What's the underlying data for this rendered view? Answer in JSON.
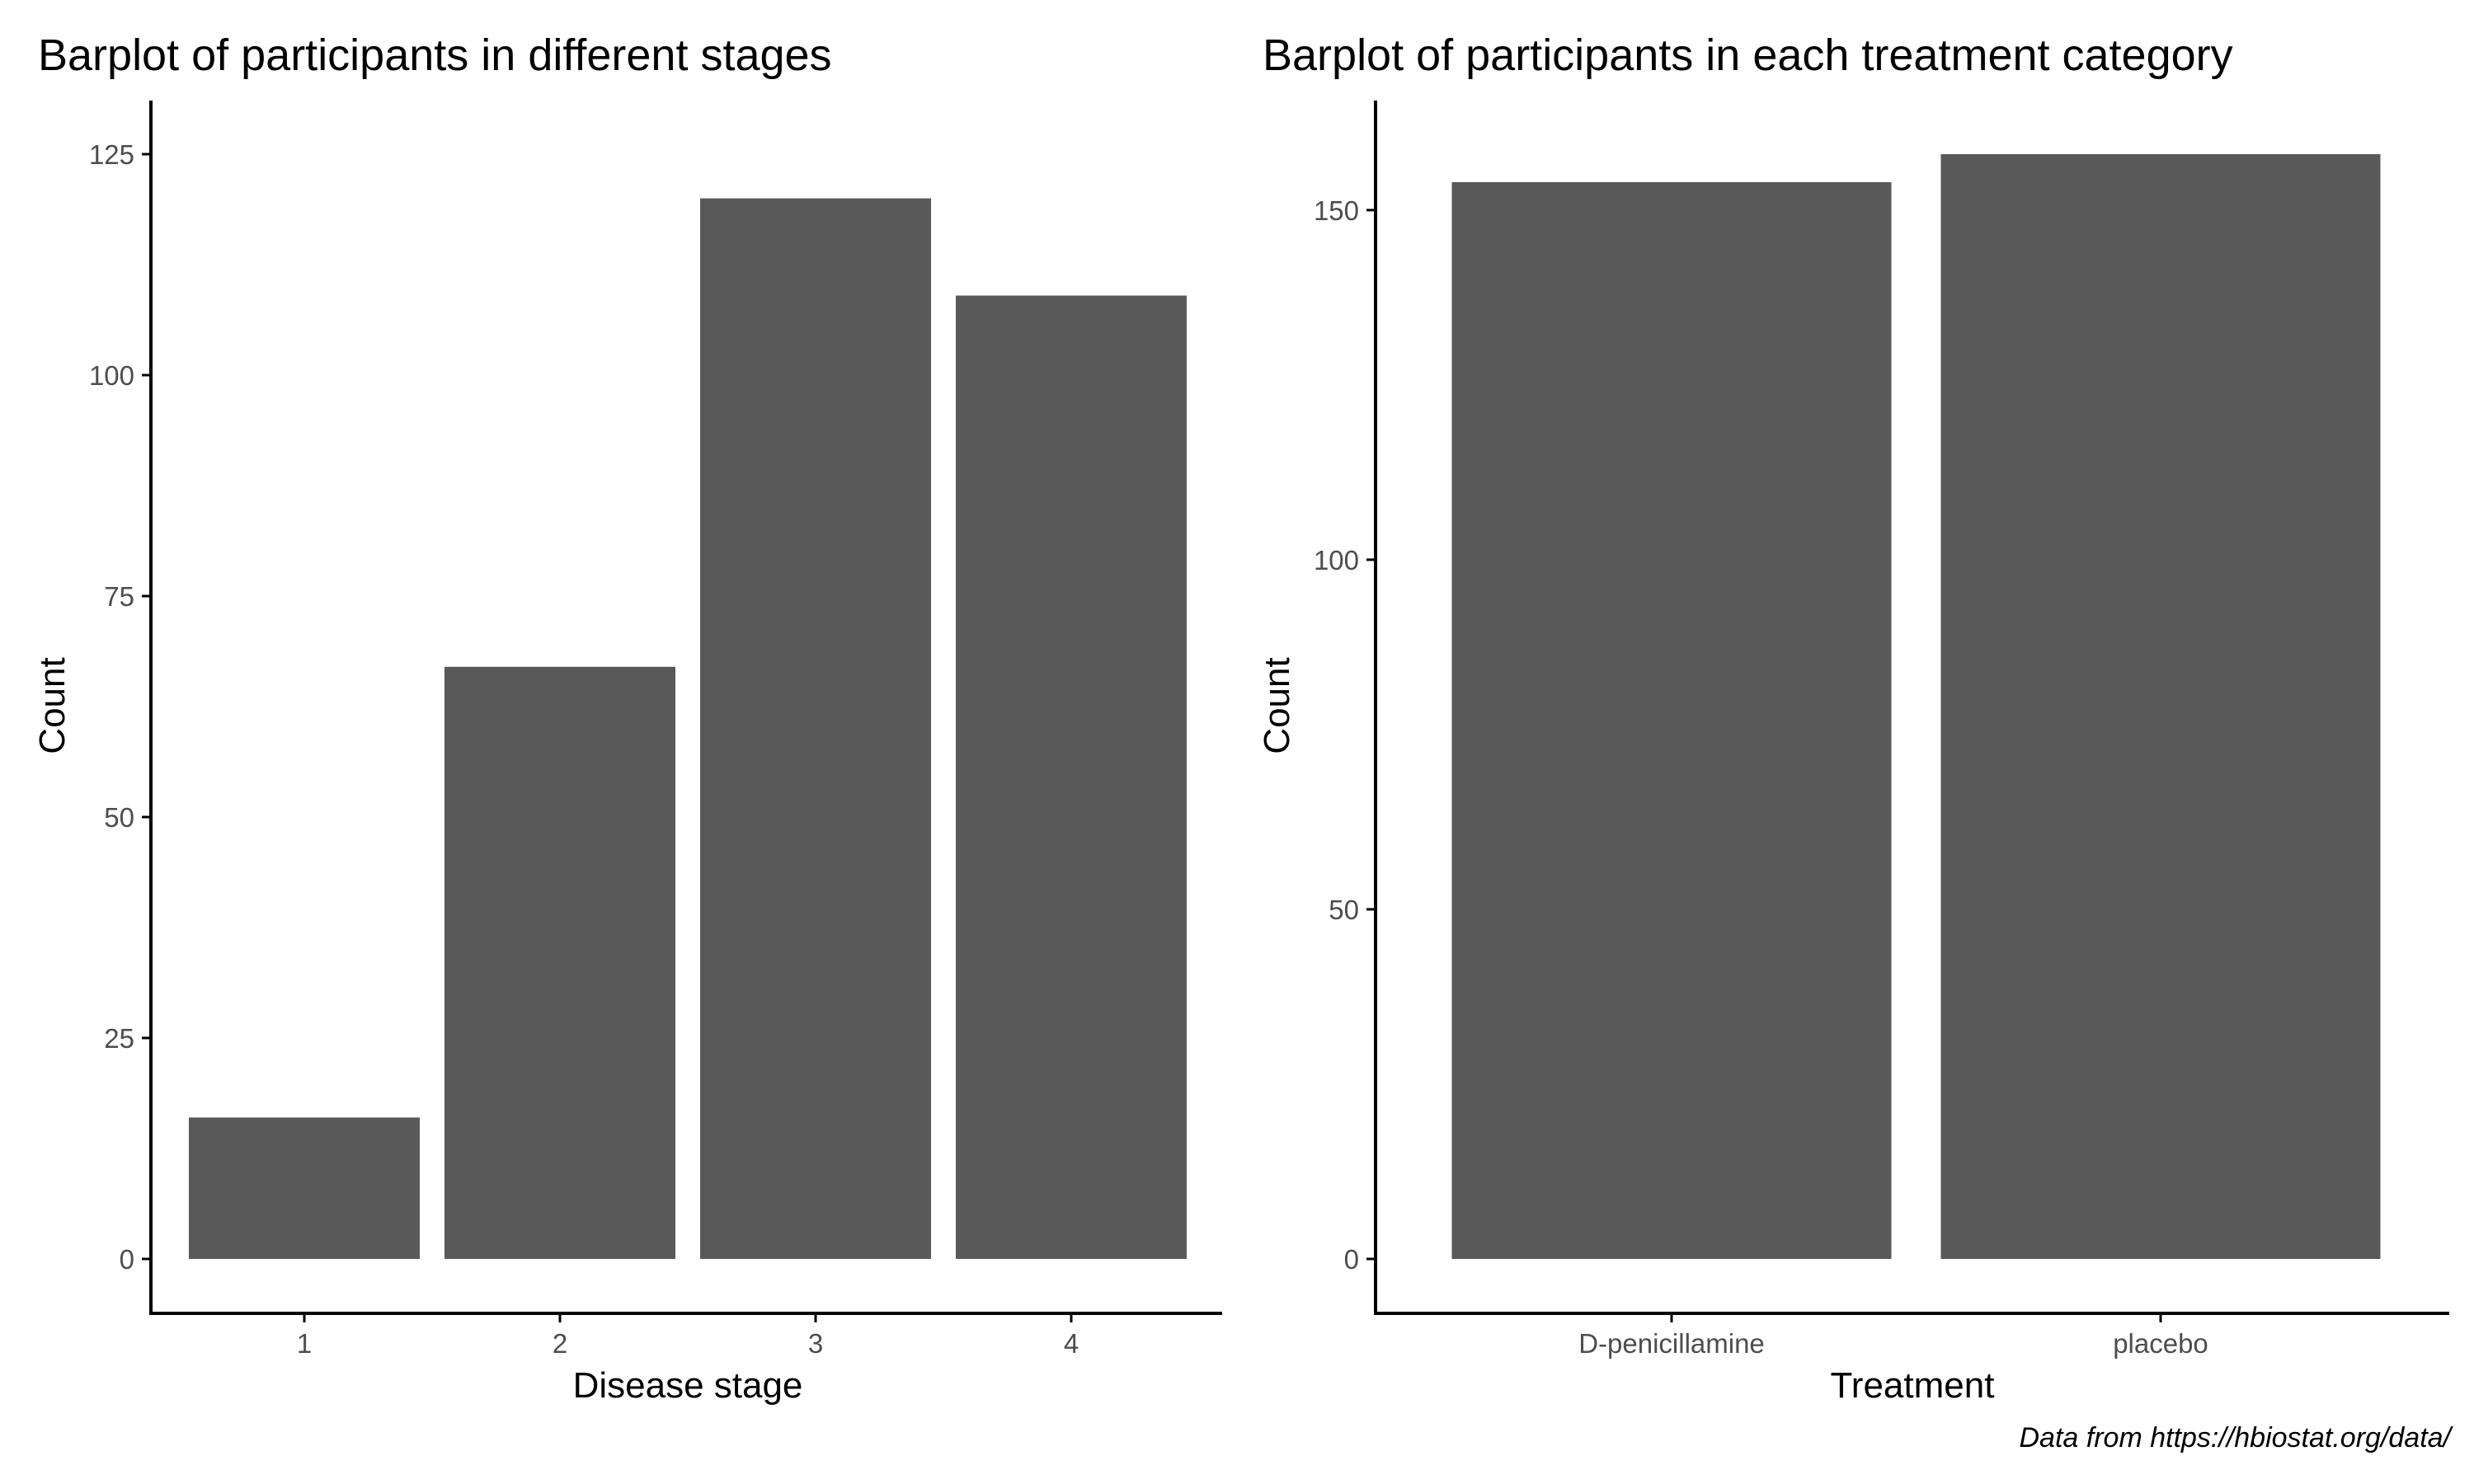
{
  "chart_data": [
    {
      "type": "bar",
      "title": "Barplot of participants in different stages",
      "xlabel": "Disease stage",
      "ylabel": "Count",
      "categories": [
        "1",
        "2",
        "3",
        "4"
      ],
      "values": [
        16,
        67,
        120,
        109
      ],
      "ylim": [
        0,
        125
      ],
      "yticks": [
        0,
        25,
        50,
        75,
        100,
        125
      ],
      "grid": false,
      "bar_color": "#595959"
    },
    {
      "type": "bar",
      "title": "Barplot of participants in each treatment category",
      "xlabel": "Treatment",
      "ylabel": "Count",
      "categories": [
        "D-penicillamine",
        "placebo"
      ],
      "values": [
        154,
        158
      ],
      "ylim": [
        0,
        158
      ],
      "yticks": [
        0,
        50,
        100,
        150
      ],
      "grid": false,
      "bar_color": "#595959"
    }
  ],
  "caption": "Data from https://hbiostat.org/data/"
}
